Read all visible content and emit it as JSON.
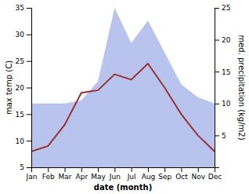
{
  "chart_data": {
    "type": "line",
    "categories": [
      "Jan",
      "Feb",
      "Mar",
      "Apr",
      "May",
      "Jun",
      "Jul",
      "Aug",
      "Sep",
      "Oct",
      "Nov",
      "Dec"
    ],
    "series": [
      {
        "type": "area",
        "axis": "y2",
        "color": "#b8c4ee",
        "values": [
          10.0,
          10.0,
          10.0,
          10.5,
          13.5,
          25.0,
          19.5,
          23.0,
          18.0,
          13.0,
          11.0,
          10.0
        ]
      },
      {
        "type": "line",
        "color": "#993333",
        "values": [
          8.0,
          9.0,
          13.0,
          19.0,
          19.5,
          22.5,
          21.5,
          24.5,
          20.0,
          15.0,
          11.0,
          8.0
        ]
      }
    ],
    "x_label": "date (month)",
    "y_label": "max temp (C)",
    "y2_label": "med. precipitation (kg/m2)",
    "ylim": [
      5,
      35
    ],
    "yticks": [
      5,
      10,
      15,
      20,
      25,
      30,
      35
    ],
    "y2lim": [
      0,
      25
    ],
    "y2ticks": [
      5,
      10,
      15,
      20,
      25
    ],
    "grid": false
  }
}
